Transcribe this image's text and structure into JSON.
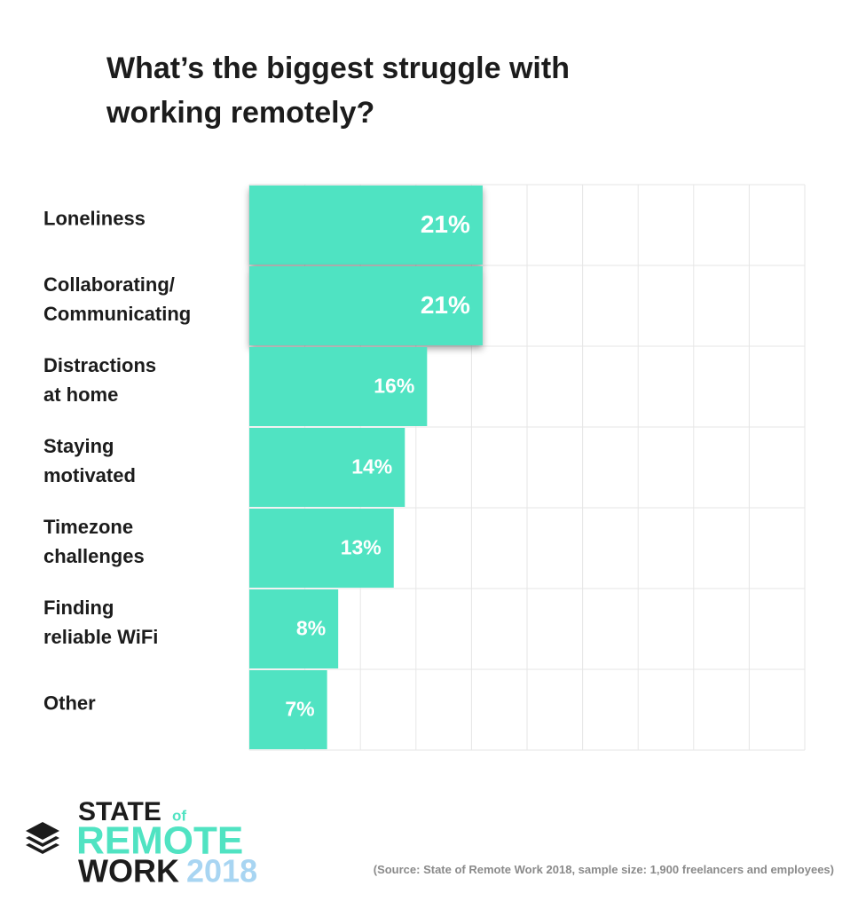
{
  "chart_data": {
    "type": "bar",
    "orientation": "horizontal",
    "title": "What’s the biggest struggle with\nworking remotely?",
    "categories": [
      "Loneliness",
      "Collaborating/\nCommunicating",
      "Distractions\nat home",
      "Staying\nmotivated",
      "Timezone\nchallenges",
      "Finding\nreliable WiFi",
      "Other"
    ],
    "values": [
      21,
      21,
      16,
      14,
      13,
      8,
      7
    ],
    "value_labels": [
      "21%",
      "21%",
      "16%",
      "14%",
      "13%",
      "8%",
      "7%"
    ],
    "color": "#50e3c2",
    "xlim": [
      0,
      50
    ],
    "grid": true
  },
  "logo": {
    "state": "STATE",
    "of": "of",
    "remote": "REMOTE",
    "work": "WORK",
    "year": "2018"
  },
  "source": "(Source: State of Remote Work 2018, sample size: 1,900 freelancers and employees)"
}
